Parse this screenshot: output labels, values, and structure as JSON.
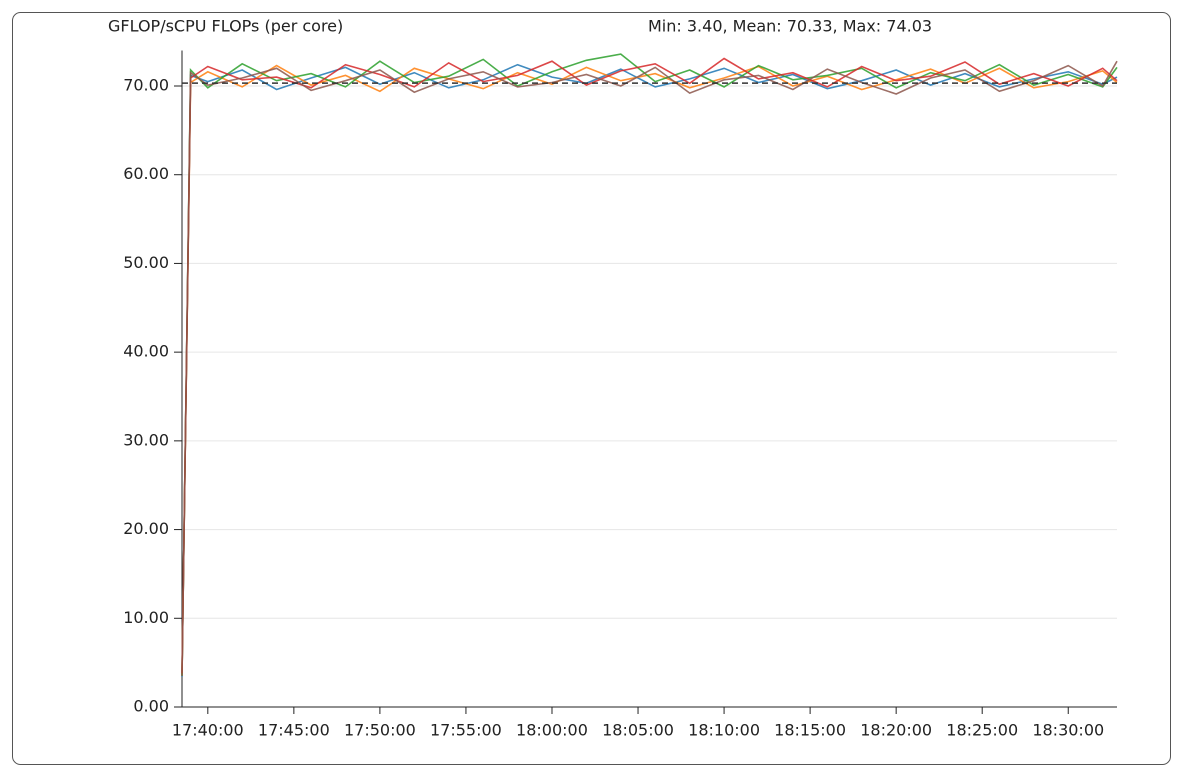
{
  "chart_data": {
    "type": "line",
    "title": "GFLOP/sCPU FLOPs (per core)",
    "subtitle": "Min: 3.40, Mean: 70.33, Max: 74.03",
    "x": [
      "17:38:30",
      "17:39:00",
      "17:40:00",
      "17:42:00",
      "17:44:00",
      "17:46:00",
      "17:48:00",
      "17:50:00",
      "17:52:00",
      "17:54:00",
      "17:56:00",
      "17:58:00",
      "18:00:00",
      "18:02:00",
      "18:04:00",
      "18:06:00",
      "18:08:00",
      "18:10:00",
      "18:12:00",
      "18:14:00",
      "18:16:00",
      "18:18:00",
      "18:20:00",
      "18:22:00",
      "18:24:00",
      "18:26:00",
      "18:28:00",
      "18:30:00",
      "18:32:00",
      "18:32:50"
    ],
    "xlim": [
      "17:38:30",
      "18:32:50"
    ],
    "xticks": [
      "17:40:00",
      "17:45:00",
      "17:50:00",
      "17:55:00",
      "18:00:00",
      "18:05:00",
      "18:10:00",
      "18:15:00",
      "18:20:00",
      "18:25:00",
      "18:30:00"
    ],
    "ylim": [
      0,
      74
    ],
    "yticks": [
      {
        "value": 0,
        "label": "0.00"
      },
      {
        "value": 10,
        "label": "10.00"
      },
      {
        "value": 20,
        "label": "20.00"
      },
      {
        "value": 30,
        "label": "30.00"
      },
      {
        "value": 40,
        "label": "40.00"
      },
      {
        "value": 50,
        "label": "50.00"
      },
      {
        "value": 60,
        "label": "60.00"
      },
      {
        "value": 70,
        "label": "70.00"
      }
    ],
    "grid": true,
    "mean_line": {
      "value": 70.33,
      "color": "#333333"
    },
    "series": [
      {
        "color": "#1f77b4",
        "values": [
          3.4,
          71.2,
          70.5,
          71.8,
          69.6,
          70.9,
          72.1,
          70.2,
          71.5,
          69.8,
          70.7,
          72.4,
          71.0,
          70.3,
          71.9,
          69.9,
          70.8,
          72.0,
          70.4,
          71.3,
          69.7,
          70.6,
          71.8,
          70.1,
          71.4,
          69.9,
          70.8,
          71.6,
          70.2,
          71.0
        ]
      },
      {
        "color": "#ff7f0e",
        "values": [
          3.6,
          70.4,
          71.6,
          69.9,
          72.3,
          70.1,
          71.2,
          69.4,
          72.0,
          70.8,
          69.7,
          71.5,
          70.2,
          72.1,
          70.6,
          71.4,
          69.8,
          70.9,
          72.2,
          70.0,
          71.1,
          69.6,
          70.7,
          71.9,
          70.3,
          72.0,
          69.8,
          70.5,
          71.7,
          70.4
        ]
      },
      {
        "color": "#2ca02c",
        "values": [
          3.5,
          71.8,
          69.8,
          72.5,
          70.6,
          71.4,
          69.9,
          72.8,
          70.4,
          71.1,
          73.0,
          70.0,
          71.6,
          72.9,
          73.6,
          70.5,
          71.8,
          69.9,
          72.3,
          70.7,
          71.2,
          72.0,
          69.8,
          71.5,
          70.6,
          72.4,
          70.1,
          71.3,
          69.9,
          72.1
        ]
      },
      {
        "color": "#d62728",
        "values": [
          3.8,
          70.9,
          72.2,
          70.7,
          71.0,
          69.8,
          72.4,
          71.3,
          69.9,
          72.6,
          70.5,
          71.2,
          72.8,
          70.1,
          71.7,
          72.5,
          70.3,
          73.1,
          70.8,
          71.5,
          69.9,
          72.2,
          70.6,
          71.1,
          72.7,
          70.2,
          71.4,
          70.0,
          72.0,
          70.6
        ]
      },
      {
        "color": "#8c564b",
        "values": [
          3.5,
          71.5,
          70.1,
          70.9,
          72.0,
          69.5,
          70.6,
          71.8,
          69.3,
          70.8,
          71.6,
          69.9,
          70.4,
          71.3,
          70.0,
          72.1,
          69.2,
          70.7,
          71.2,
          69.6,
          71.9,
          70.4,
          69.1,
          70.9,
          71.8,
          69.4,
          70.6,
          72.3,
          70.0,
          72.8
        ]
      }
    ]
  }
}
